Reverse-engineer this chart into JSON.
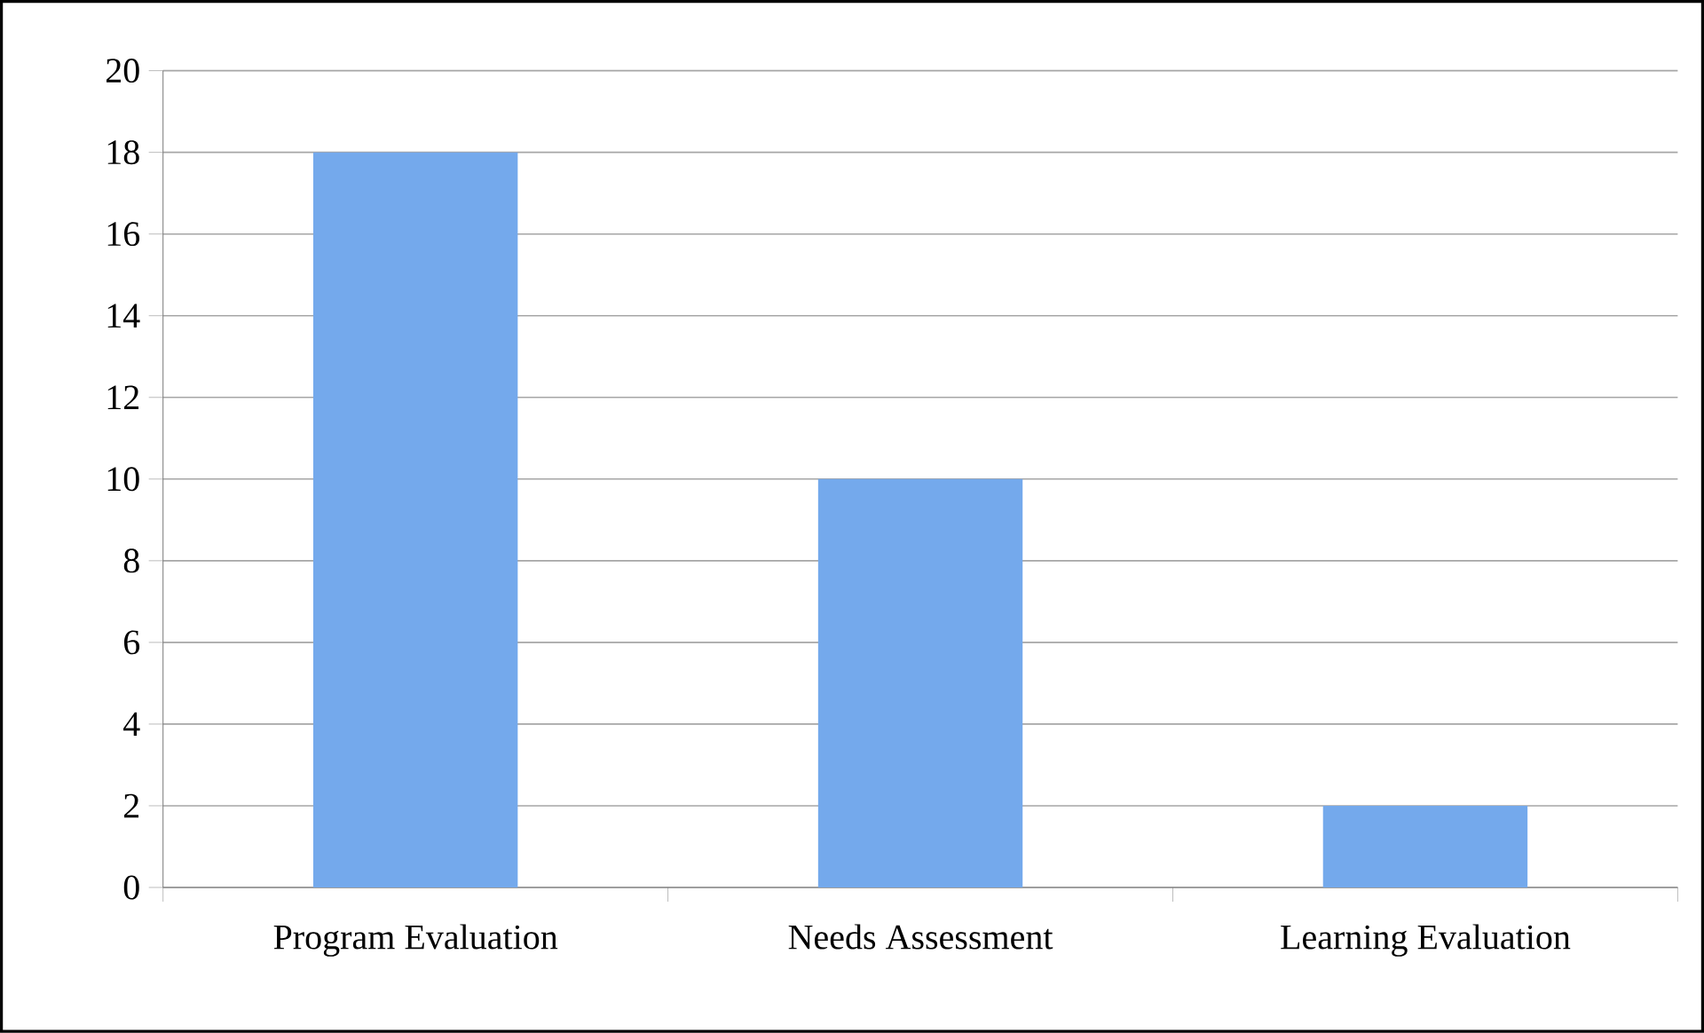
{
  "chart_data": {
    "type": "bar",
    "categories": [
      "Program Evaluation",
      "Needs Assessment",
      "Learning Evaluation"
    ],
    "values": [
      18,
      10,
      2
    ],
    "color": "#74a9ec",
    "ylim": [
      0,
      20
    ],
    "yticks": [
      0,
      2,
      4,
      6,
      8,
      10,
      12,
      14,
      16,
      18,
      20
    ],
    "grid": "y"
  }
}
